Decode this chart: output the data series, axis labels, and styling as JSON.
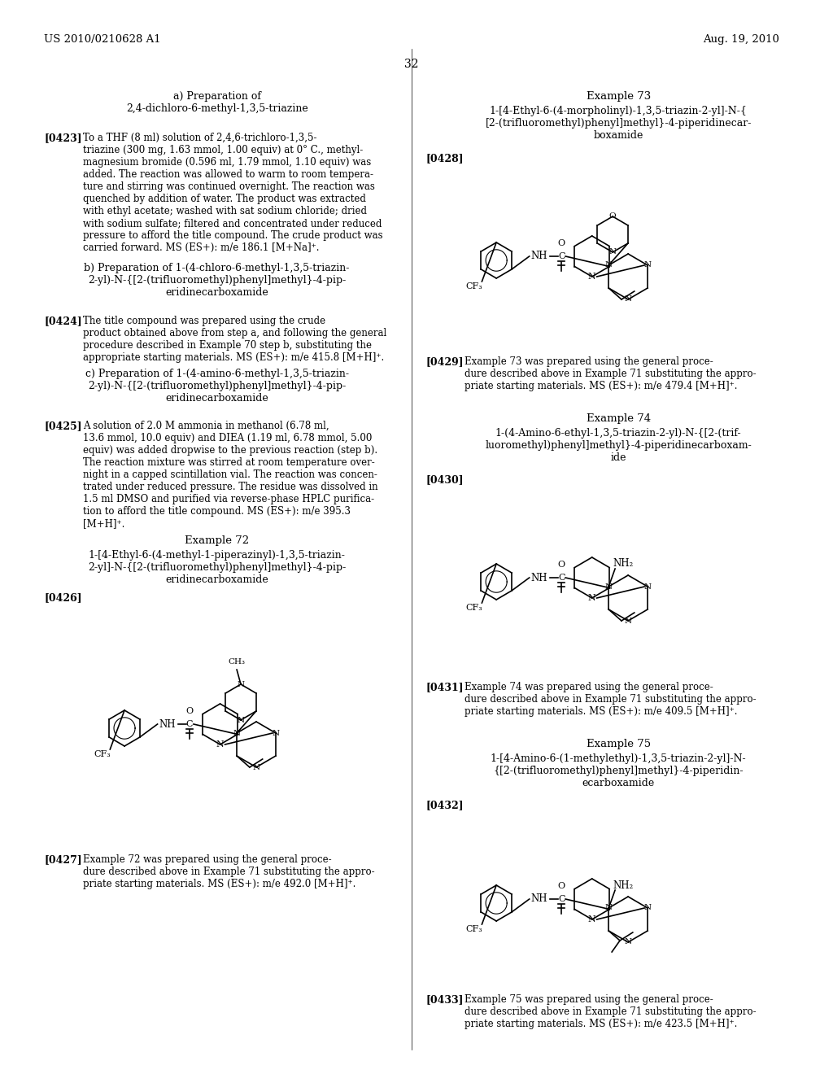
{
  "page_header_left": "US 2010/0210628 A1",
  "page_header_right": "Aug. 19, 2010",
  "page_number": "32",
  "background_color": "#ffffff",
  "text_color": "#000000",
  "left_column": {
    "section_a_title": "a) Preparation of\n2,4-dichloro-6-methyl-1,3,5-triazine",
    "para_0423_tag": "[0423]",
    "para_0423": "To a THF (8 ml) solution of 2,4,6-trichloro-1,3,5-\ntriazine (300 mg, 1.63 mmol, 1.00 equiv) at 0° C., methyl-\nmagnesium bromide (0.596 ml, 1.79 mmol, 1.10 equiv) was\nadded. The reaction was allowed to warm to room tempera-\nture and stirring was continued overnight. The reaction was\nquenched by addition of water. The product was extracted\nwith ethyl acetate; washed with sat sodium chloride; dried\nwith sodium sulfate; filtered and concentrated under reduced\npressure to afford the title compound. The crude product was\ncarried forward. MS (ES+): m/e 186.1 [M+Na]⁺.",
    "section_b_title": "b) Preparation of 1-(4-chloro-6-methyl-1,3,5-triazin-\n2-yl)-N-{[2-(trifluoromethyl)phenyl]methyl}-4-pip-\neridinecarboxamide",
    "para_0424_tag": "[0424]",
    "para_0424": "The title compound was prepared using the crude\nproduct obtained above from step a, and following the general\nprocedure described in Example 70 step b, substituting the\nappropriate starting materials. MS (ES+): m/e 415.8 [M+H]⁺.",
    "section_c_title": "c) Preparation of 1-(4-amino-6-methyl-1,3,5-triazin-\n2-yl)-N-{[2-(trifluoromethyl)phenyl]methyl}-4-pip-\neridinecarboxamide",
    "para_0425_tag": "[0425]",
    "para_0425": "A solution of 2.0 M ammonia in methanol (6.78 ml,\n13.6 mmol, 10.0 equiv) and DIEA (1.19 ml, 6.78 mmol, 5.00\nequiv) was added dropwise to the previous reaction (step b).\nThe reaction mixture was stirred at room temperature over-\nnight in a capped scintillation vial. The reaction was concen-\ntrated under reduced pressure. The residue was dissolved in\n1.5 ml DMSO and purified via reverse-phase HPLC purifica-\ntion to afford the title compound. MS (ES+): m/e 395.3\n[M+H]⁺.",
    "example72_title": "Example 72",
    "example72_name": "1-[4-Ethyl-6-(4-methyl-1-piperazinyl)-1,3,5-triazin-\n2-yl]-N-{[2-(trifluoromethyl)phenyl]methyl}-4-pip-\neridinecarboxamide",
    "para_0426_tag": "[0426]",
    "para_0427_tag": "[0427]",
    "para_0427": "Example 72 was prepared using the general proce-\ndure described above in Example 71 substituting the appro-\npriate starting materials. MS (ES+): m/e 492.0 [M+H]⁺."
  },
  "right_column": {
    "example73_title": "Example 73",
    "example73_name": "1-[4-Ethyl-6-(4-morpholinyl)-1,3,5-triazin-2-yl]-N-{\n[2-(trifluoromethyl)phenyl]methyl}-4-piperidinecar-\nboxamide",
    "para_0428_tag": "[0428]",
    "para_0429_tag": "[0429]",
    "para_0429": "Example 73 was prepared using the general proce-\ndure described above in Example 71 substituting the appro-\npriate starting materials. MS (ES+): m/e 479.4 [M+H]⁺.",
    "example74_title": "Example 74",
    "example74_name": "1-(4-Amino-6-ethyl-1,3,5-triazin-2-yl)-N-{[2-(trif-\nluoromethyl)phenyl]methyl}-4-piperidinecarboxam-\nide",
    "para_0430_tag": "[0430]",
    "para_0431_tag": "[0431]",
    "para_0431": "Example 74 was prepared using the general proce-\ndure described above in Example 71 substituting the appro-\npriate starting materials. MS (ES+): m/e 409.5 [M+H]⁺.",
    "example75_title": "Example 75",
    "example75_name": "1-[4-Amino-6-(1-methylethyl)-1,3,5-triazin-2-yl]-N-\n{[2-(trifluoromethyl)phenyl]methyl}-4-piperidin-\necarboxamide",
    "para_0432_tag": "[0432]",
    "para_0433_tag": "[0433]",
    "para_0433": "Example 75 was prepared using the general proce-\ndure described above in Example 71 substituting the appro-\npriate starting materials. MS (ES+): m/e 423.5 [M+H]⁺."
  }
}
